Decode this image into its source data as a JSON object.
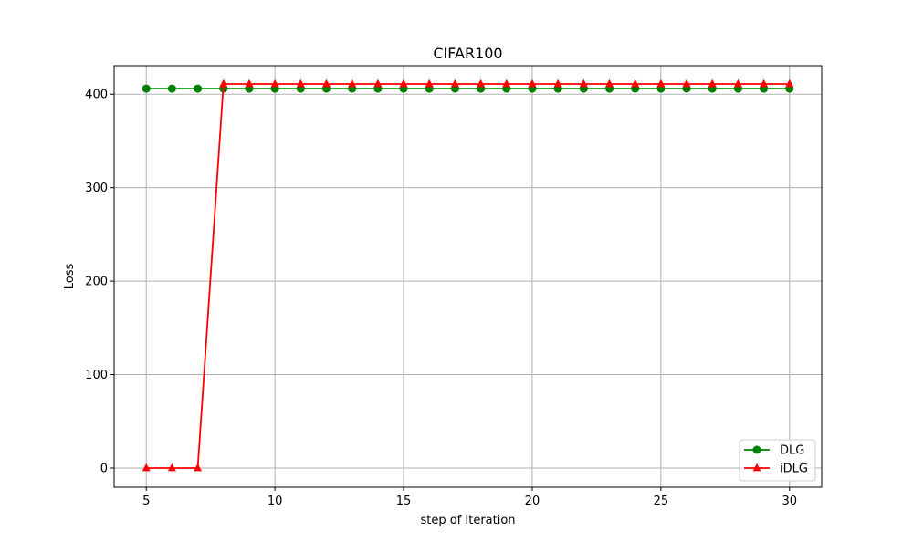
{
  "chart_data": {
    "type": "line",
    "title": "CIFAR100",
    "xlabel": "step of Iteration",
    "ylabel": "Loss",
    "xlim": [
      3.75,
      31.25
    ],
    "ylim": [
      -20.5,
      430.5
    ],
    "xticks": [
      5,
      10,
      15,
      20,
      25,
      30
    ],
    "yticks": [
      0,
      100,
      200,
      300,
      400
    ],
    "grid": true,
    "legend_position": "lower-right",
    "x": [
      5,
      6,
      7,
      8,
      9,
      10,
      11,
      12,
      13,
      14,
      15,
      16,
      17,
      18,
      19,
      20,
      21,
      22,
      23,
      24,
      25,
      26,
      27,
      28,
      29,
      30
    ],
    "series": [
      {
        "name": "DLG",
        "color": "#008000",
        "marker": "circle",
        "values": [
          406,
          406,
          406,
          406,
          406,
          406,
          406,
          406,
          406,
          406,
          406,
          406,
          406,
          406,
          406,
          406,
          406,
          406,
          406,
          406,
          406,
          406,
          406,
          406,
          406,
          406
        ]
      },
      {
        "name": "iDLG",
        "color": "#ff0000",
        "marker": "triangle",
        "values": [
          0,
          0,
          0,
          411,
          411,
          411,
          411,
          411,
          411,
          411,
          411,
          411,
          411,
          411,
          411,
          411,
          411,
          411,
          411,
          411,
          411,
          411,
          411,
          411,
          411,
          411
        ]
      }
    ]
  }
}
